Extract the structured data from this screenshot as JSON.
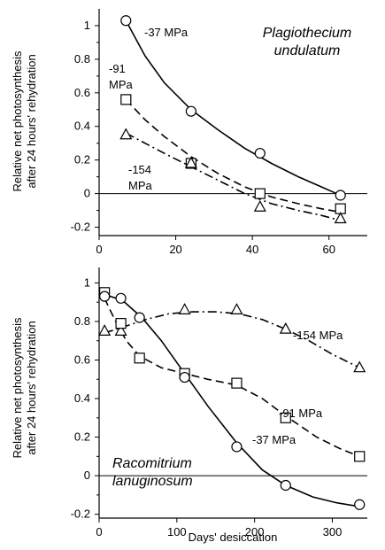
{
  "ylabel_line1": "Relative net photosynthesis",
  "ylabel_line2": "after 24 hours' rehydration",
  "xlabel": "Days' desiccation",
  "chart_data": [
    {
      "type": "line",
      "species_line1": "Plagiothecium",
      "species_line2": "undulatum",
      "xlim": [
        0,
        70
      ],
      "ylim": [
        -0.25,
        1.1
      ],
      "xticks": [
        0,
        20,
        40,
        60
      ],
      "yticks": [
        -0.2,
        0,
        0.2,
        0.4,
        0.6,
        0.8,
        1
      ],
      "grid": false,
      "series": [
        {
          "name": "-37 MPa",
          "marker": "circle",
          "line": "solid",
          "points": [
            [
              7,
              1.03
            ],
            [
              24,
              0.49
            ],
            [
              42,
              0.24
            ],
            [
              63,
              -0.01
            ]
          ],
          "curve": [
            [
              7,
              1.03
            ],
            [
              12,
              0.82
            ],
            [
              17,
              0.66
            ],
            [
              24,
              0.5
            ],
            [
              31,
              0.38
            ],
            [
              38,
              0.27
            ],
            [
              45,
              0.18
            ],
            [
              52,
              0.1
            ],
            [
              58,
              0.04
            ],
            [
              63,
              -0.01
            ]
          ]
        },
        {
          "name_line1": "-91",
          "name_line2": "MPa",
          "marker": "square",
          "line": "dashed",
          "points": [
            [
              7,
              0.56
            ],
            [
              24,
              0.18
            ],
            [
              42,
              0.0
            ],
            [
              63,
              -0.09
            ]
          ],
          "curve": [
            [
              7,
              0.56
            ],
            [
              12,
              0.44
            ],
            [
              17,
              0.34
            ],
            [
              24,
              0.22
            ],
            [
              31,
              0.12
            ],
            [
              38,
              0.04
            ],
            [
              45,
              -0.02
            ],
            [
              52,
              -0.06
            ],
            [
              58,
              -0.09
            ],
            [
              63,
              -0.11
            ]
          ]
        },
        {
          "name_line1": "-154",
          "name_line2": "MPa",
          "marker": "triangle",
          "line": "dashdot",
          "points": [
            [
              7,
              0.35
            ],
            [
              24,
              0.18
            ],
            [
              42,
              -0.08
            ],
            [
              63,
              -0.15
            ]
          ],
          "curve": [
            [
              7,
              0.36
            ],
            [
              12,
              0.3
            ],
            [
              17,
              0.24
            ],
            [
              24,
              0.16
            ],
            [
              31,
              0.08
            ],
            [
              38,
              0.0
            ],
            [
              45,
              -0.06
            ],
            [
              52,
              -0.1
            ],
            [
              58,
              -0.13
            ],
            [
              63,
              -0.16
            ]
          ]
        }
      ]
    },
    {
      "type": "line",
      "species_line1": "Racomitrium",
      "species_line2": "lanuginosum",
      "xlim": [
        0,
        345
      ],
      "ylim": [
        -0.22,
        1.08
      ],
      "xticks": [
        0,
        100,
        200,
        300
      ],
      "yticks": [
        -0.2,
        0,
        0.2,
        0.4,
        0.6,
        0.8,
        1
      ],
      "grid": false,
      "series": [
        {
          "name": "-154 MPa",
          "marker": "triangle",
          "line": "dashdot",
          "points": [
            [
              7,
              0.75
            ],
            [
              28,
              0.75
            ],
            [
              110,
              0.86
            ],
            [
              177,
              0.86
            ],
            [
              240,
              0.76
            ],
            [
              335,
              0.56
            ]
          ],
          "curve": [
            [
              7,
              0.74
            ],
            [
              30,
              0.77
            ],
            [
              60,
              0.81
            ],
            [
              90,
              0.84
            ],
            [
              120,
              0.85
            ],
            [
              150,
              0.85
            ],
            [
              180,
              0.84
            ],
            [
              210,
              0.81
            ],
            [
              240,
              0.76
            ],
            [
              270,
              0.7
            ],
            [
              300,
              0.63
            ],
            [
              335,
              0.56
            ]
          ]
        },
        {
          "name": "-91 MPa",
          "marker": "square",
          "line": "dashed",
          "points": [
            [
              7,
              0.95
            ],
            [
              28,
              0.79
            ],
            [
              52,
              0.61
            ],
            [
              110,
              0.53
            ],
            [
              177,
              0.48
            ],
            [
              240,
              0.3
            ],
            [
              335,
              0.1
            ]
          ],
          "curve": [
            [
              7,
              0.92
            ],
            [
              20,
              0.81
            ],
            [
              35,
              0.7
            ],
            [
              52,
              0.62
            ],
            [
              80,
              0.56
            ],
            [
              110,
              0.53
            ],
            [
              140,
              0.5
            ],
            [
              177,
              0.47
            ],
            [
              210,
              0.4
            ],
            [
              240,
              0.31
            ],
            [
              280,
              0.2
            ],
            [
              310,
              0.14
            ],
            [
              335,
              0.1
            ]
          ]
        },
        {
          "name": "-37 MPa",
          "marker": "circle",
          "line": "solid",
          "points": [
            [
              7,
              0.93
            ],
            [
              28,
              0.92
            ],
            [
              52,
              0.82
            ],
            [
              110,
              0.51
            ],
            [
              177,
              0.15
            ],
            [
              240,
              -0.05
            ],
            [
              335,
              -0.15
            ]
          ],
          "curve": [
            [
              7,
              0.94
            ],
            [
              30,
              0.91
            ],
            [
              55,
              0.82
            ],
            [
              80,
              0.7
            ],
            [
              110,
              0.53
            ],
            [
              140,
              0.36
            ],
            [
              177,
              0.17
            ],
            [
              210,
              0.03
            ],
            [
              240,
              -0.05
            ],
            [
              275,
              -0.11
            ],
            [
              305,
              -0.14
            ],
            [
              335,
              -0.16
            ]
          ]
        }
      ]
    }
  ]
}
